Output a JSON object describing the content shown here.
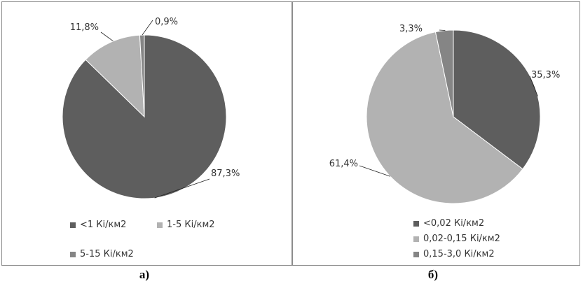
{
  "chart_data": [
    {
      "type": "pie",
      "caption": "а)",
      "slices": [
        {
          "label": "<1 Кі/км2",
          "value": 87.3,
          "data_label": "87,3%",
          "color": "#5e5e5e"
        },
        {
          "label": "1-5 Кі/км2",
          "value": 11.8,
          "data_label": "11,8%",
          "color": "#b2b2b2"
        },
        {
          "label": "5-15 Кі/км2",
          "value": 0.9,
          "data_label": "0,9%",
          "color": "#858585"
        }
      ],
      "legend": [
        "<1 Кі/км2",
        "1-5 Кі/км2",
        "5-15 Кі/км2"
      ]
    },
    {
      "type": "pie",
      "caption": "б)",
      "slices": [
        {
          "label": "<0,02 Кі/км2",
          "value": 35.3,
          "data_label": "35,3%",
          "color": "#5e5e5e"
        },
        {
          "label": "0,02-0,15 Кі/км2",
          "value": 61.4,
          "data_label": "61,4%",
          "color": "#b2b2b2"
        },
        {
          "label": "0,15-3,0 Кі/км2",
          "value": 3.3,
          "data_label": "3,3%",
          "color": "#858585"
        }
      ],
      "legend": [
        "<0,02 Кі/км2",
        "0,02-0,15 Кі/км2",
        "0,15-3,0 Кі/км2"
      ]
    }
  ]
}
